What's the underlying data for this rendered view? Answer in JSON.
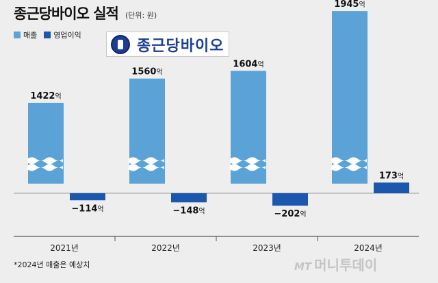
{
  "header": {
    "title": "종근당바이오 실적",
    "unit": "(단위: 원)"
  },
  "logo": {
    "text": "종근당바이오"
  },
  "footnote": "*2024년 매출은 예상치",
  "watermark": {
    "mark": "MT",
    "text": "머니투데이"
  },
  "colors": {
    "sales": "#5ba3d6",
    "op_profit": "#1b57ad",
    "background": "#eeeeee"
  },
  "chart_data": {
    "type": "bar",
    "title": "종근당바이오 실적",
    "unit_label": "(단위: 원)",
    "categories": [
      "2021년",
      "2022년",
      "2023년",
      "2024년"
    ],
    "series": [
      {
        "name": "매출",
        "values": [
          1422,
          1560,
          1604,
          1945
        ],
        "labels": [
          "1422억",
          "1560억",
          "1604억",
          "1945억"
        ],
        "color": "#5ba3d6",
        "axis_break": true
      },
      {
        "name": "영업이익",
        "values": [
          -114,
          -148,
          -202,
          173
        ],
        "labels": [
          "-114억",
          "-148억",
          "-202억",
          "173억"
        ],
        "color": "#1b57ad"
      }
    ],
    "legend_position": "top-left",
    "grid": false
  }
}
